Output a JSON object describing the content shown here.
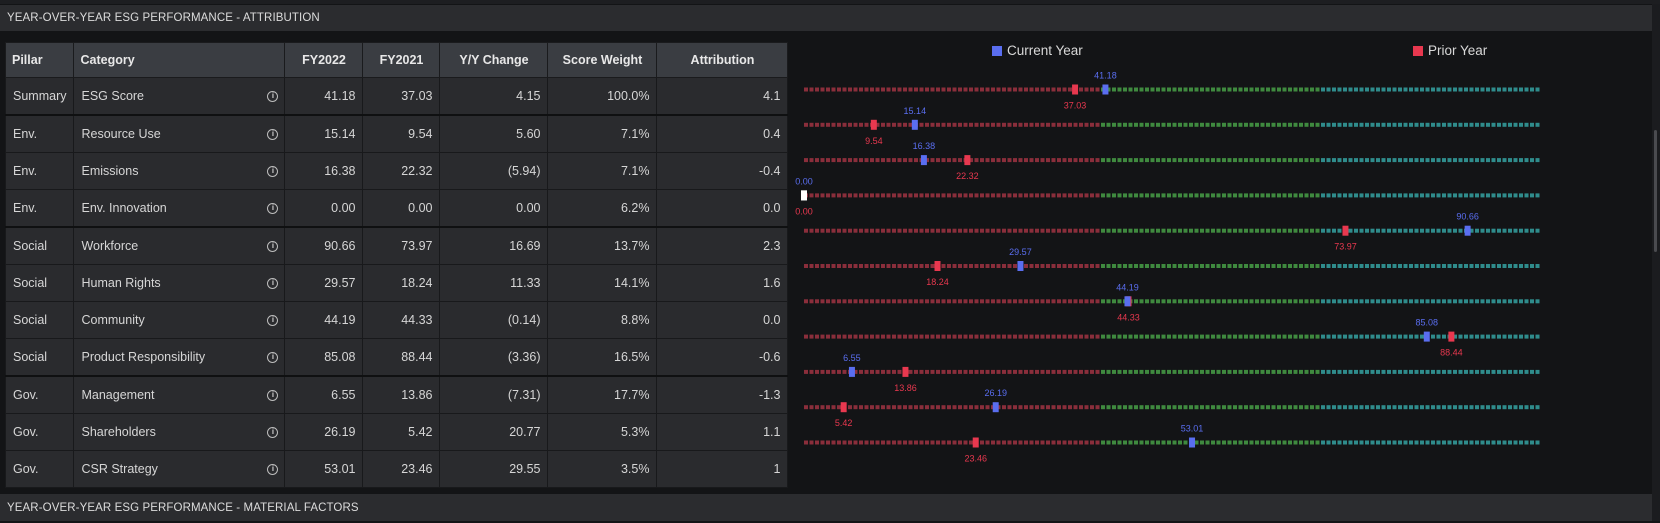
{
  "sections": {
    "attribution_title": "YEAR-OVER-YEAR ESG PERFORMANCE - ATTRIBUTION",
    "material_title": "YEAR-OVER-YEAR ESG PERFORMANCE - MATERIAL FACTORS"
  },
  "table": {
    "headers": [
      "Pillar",
      "Category",
      "FY2022",
      "FY2021",
      "Y/Y Change",
      "Score Weight",
      "Attribution"
    ],
    "rows": [
      {
        "pillar": "Summary",
        "category": "ESG Score",
        "fy2022": "41.18",
        "fy2021": "37.03",
        "change": "4.15",
        "change_sign": "pos",
        "weight": "100.0%",
        "attribution": "4.1"
      },
      {
        "pillar": "Env.",
        "category": "Resource Use",
        "fy2022": "15.14",
        "fy2021": "9.54",
        "change": "5.60",
        "change_sign": "pos",
        "weight": "7.1%",
        "attribution": "0.4"
      },
      {
        "pillar": "Env.",
        "category": "Emissions",
        "fy2022": "16.38",
        "fy2021": "22.32",
        "change": "(5.94)",
        "change_sign": "neg",
        "weight": "7.1%",
        "attribution": "-0.4"
      },
      {
        "pillar": "Env.",
        "category": "Env. Innovation",
        "fy2022": "0.00",
        "fy2021": "0.00",
        "change": "0.00",
        "change_sign": "pos",
        "weight": "6.2%",
        "attribution": "0.0"
      },
      {
        "pillar": "Social",
        "category": "Workforce",
        "fy2022": "90.66",
        "fy2021": "73.97",
        "change": "16.69",
        "change_sign": "pos",
        "weight": "13.7%",
        "attribution": "2.3"
      },
      {
        "pillar": "Social",
        "category": "Human Rights",
        "fy2022": "29.57",
        "fy2021": "18.24",
        "change": "11.33",
        "change_sign": "pos",
        "weight": "14.1%",
        "attribution": "1.6"
      },
      {
        "pillar": "Social",
        "category": "Community",
        "fy2022": "44.19",
        "fy2021": "44.33",
        "change": "(0.14)",
        "change_sign": "neg",
        "weight": "8.8%",
        "attribution": "0.0"
      },
      {
        "pillar": "Social",
        "category": "Product Responsibility",
        "fy2022": "85.08",
        "fy2021": "88.44",
        "change": "(3.36)",
        "change_sign": "neg",
        "weight": "16.5%",
        "attribution": "-0.6"
      },
      {
        "pillar": "Gov.",
        "category": "Management",
        "fy2022": "6.55",
        "fy2021": "13.86",
        "change": "(7.31)",
        "change_sign": "neg",
        "weight": "17.7%",
        "attribution": "-1.3"
      },
      {
        "pillar": "Gov.",
        "category": "Shareholders",
        "fy2022": "26.19",
        "fy2021": "5.42",
        "change": "20.77",
        "change_sign": "pos",
        "weight": "5.3%",
        "attribution": "1.1"
      },
      {
        "pillar": "Gov.",
        "category": "CSR Strategy",
        "fy2022": "53.01",
        "fy2021": "23.46",
        "change": "29.55",
        "change_sign": "pos",
        "weight": "3.5%",
        "attribution": "1"
      }
    ]
  },
  "legend": {
    "current": {
      "label": "Current Year",
      "color": "#5a6ef0"
    },
    "prior": {
      "label": "Prior Year",
      "color": "#e8384f"
    }
  },
  "chart_data": {
    "type": "scatter",
    "xlim": [
      0,
      100
    ],
    "band_colors": {
      "low": "#8a2e3b",
      "mid": "#3f8a3f",
      "high": "#2f8c8c"
    },
    "band_breaks": [
      40,
      70
    ],
    "equal_color": "#ffffff",
    "series": [
      {
        "name": "Current Year",
        "values": [
          41.18,
          15.14,
          16.38,
          0.0,
          90.66,
          29.57,
          44.19,
          85.08,
          6.55,
          26.19,
          53.01
        ]
      },
      {
        "name": "Prior Year",
        "values": [
          37.03,
          9.54,
          22.32,
          0.0,
          73.97,
          18.24,
          44.33,
          88.44,
          13.86,
          5.42,
          23.46
        ]
      }
    ]
  }
}
